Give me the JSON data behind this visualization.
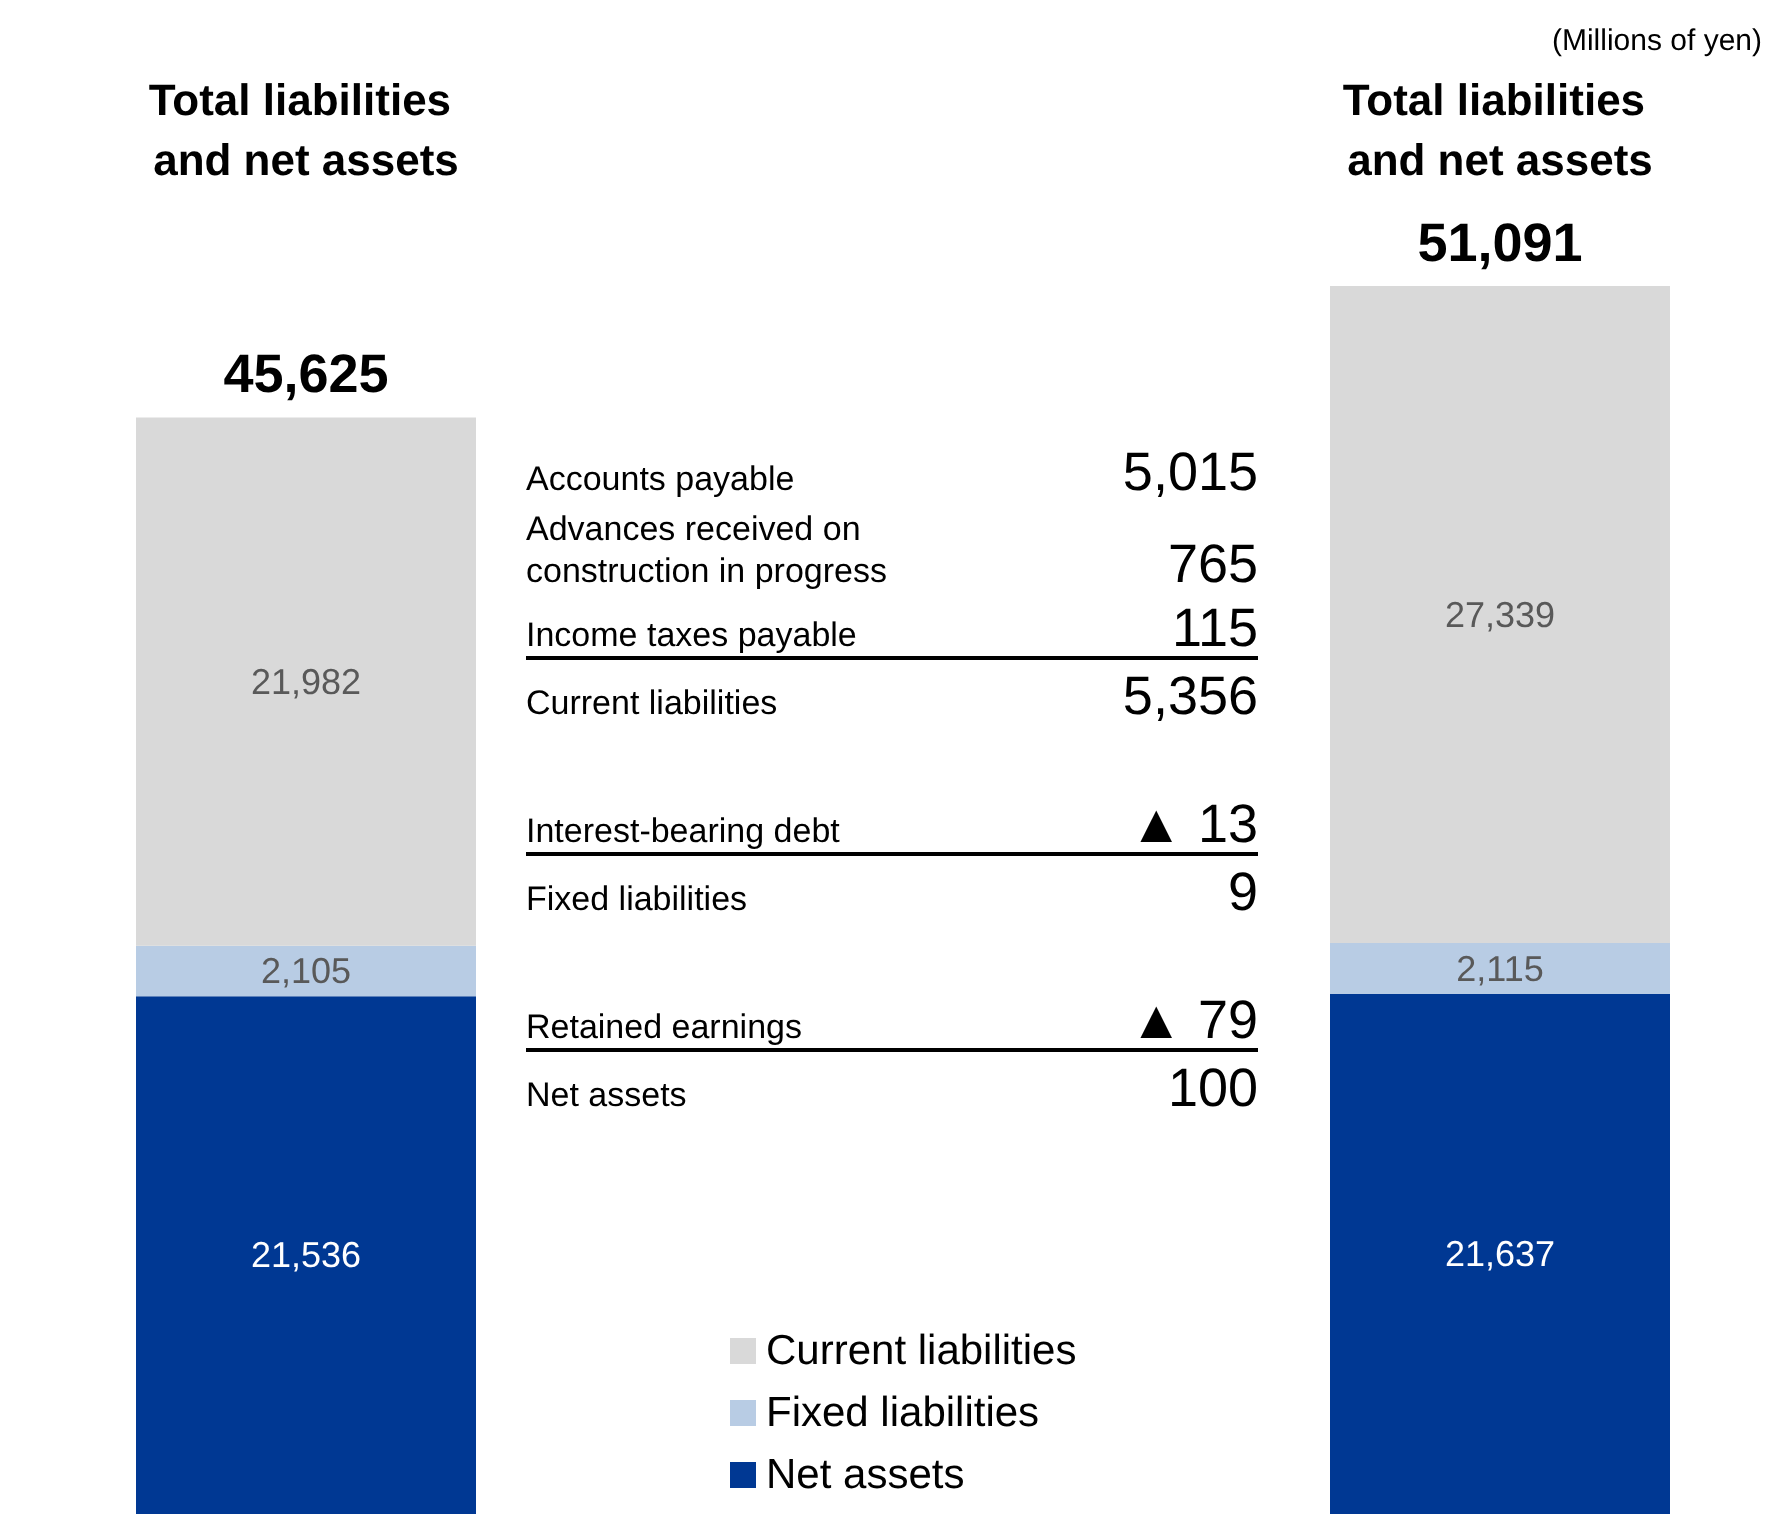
{
  "chart_data": {
    "type": "bar",
    "stacked": true,
    "categories": [
      "Total liabilities and net assets",
      "Total liabilities and net assets"
    ],
    "series": [
      {
        "name": "Net assets",
        "color": "#003893",
        "values": [
          21536,
          21637
        ],
        "value_labels": [
          "21,536",
          "21,637"
        ]
      },
      {
        "name": "Fixed liabilities",
        "color": "#b8cce4",
        "values": [
          2105,
          2115
        ],
        "value_labels": [
          "2,105",
          "2,115"
        ]
      },
      {
        "name": "Current liabilities",
        "color": "#d9d9d9",
        "values": [
          21982,
          27339
        ],
        "value_labels": [
          "21,982",
          "27,339"
        ]
      }
    ],
    "totals": [
      "45,625",
      "51,091"
    ],
    "legend": "bottom",
    "annotations": [
      "(Millions of yen)",
      "Accounts payable",
      "5,015",
      "Advances received on construction in progress",
      "765",
      "Income taxes payable",
      "115",
      "Current liabilities",
      "5,356",
      "Interest-bearing debt",
      "▲ 13",
      "Fixed liabilities",
      "9",
      "Retained earnings",
      "▲ 79",
      "Net assets",
      "100"
    ]
  }
}
